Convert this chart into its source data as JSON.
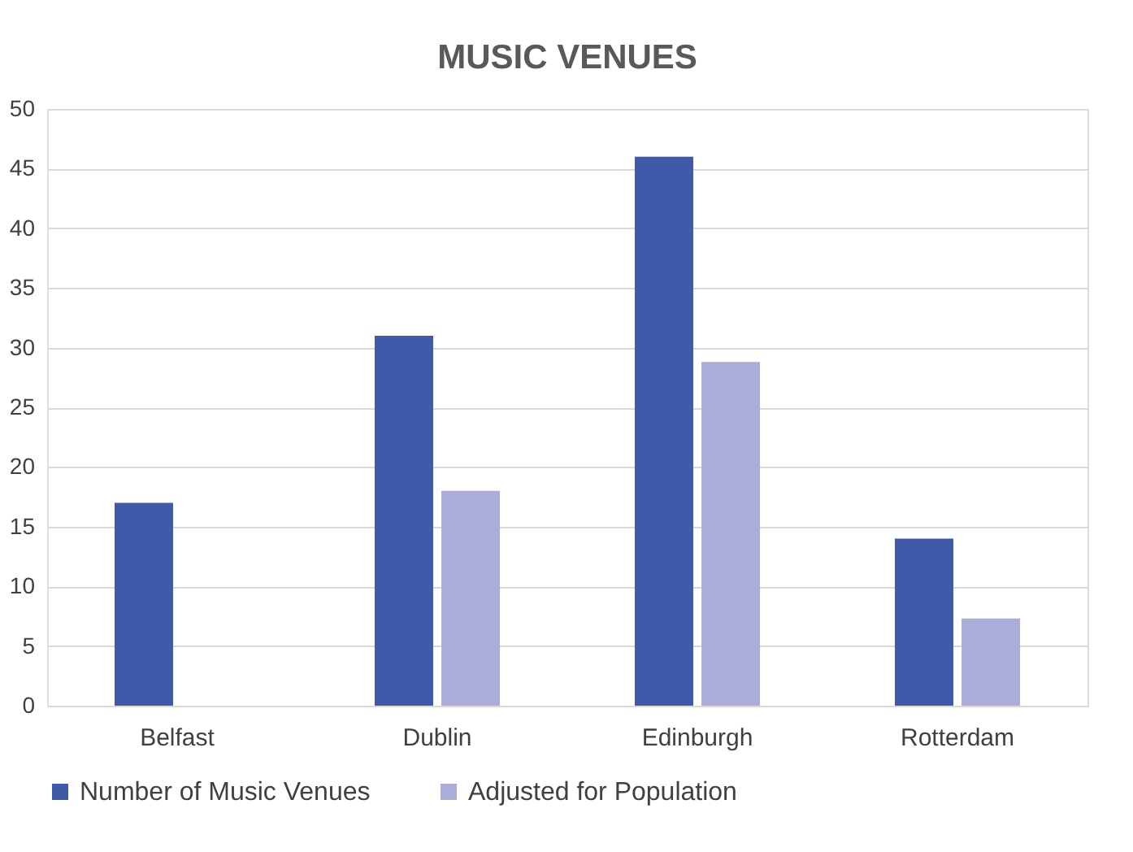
{
  "chart_data": {
    "type": "bar",
    "title": "MUSIC VENUES",
    "categories": [
      "Belfast",
      "Dublin",
      "Edinburgh",
      "Rotterdam"
    ],
    "series": [
      {
        "name": "Number of Music Venues",
        "color": "#4059a9",
        "values": [
          17,
          31,
          46,
          14
        ]
      },
      {
        "name": "Adjusted for Population",
        "color": "#abadd8",
        "values": [
          null,
          18,
          28.8,
          7.3
        ]
      }
    ],
    "ylim": [
      0,
      50
    ],
    "yticks": [
      0,
      5,
      10,
      15,
      20,
      25,
      30,
      35,
      40,
      45,
      50
    ],
    "grid": "y",
    "legend": "bottom"
  }
}
